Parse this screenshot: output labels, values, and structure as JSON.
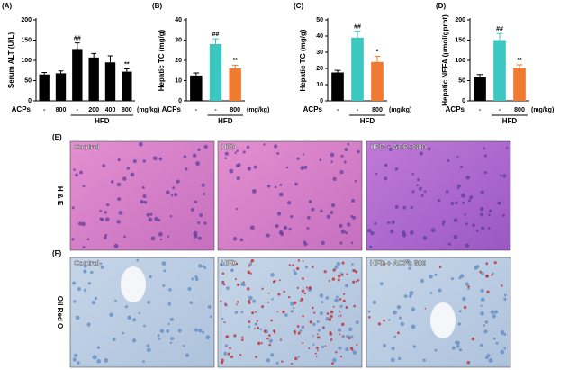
{
  "chart_data": [
    {
      "type": "bar",
      "title": "(A)",
      "y_label": "Serum ALT (U/L)",
      "row_label": "ACPs",
      "unit_label": "(mg/kg)",
      "categories": [
        "-",
        "800",
        "-",
        "200",
        "400",
        "800"
      ],
      "values": [
        65,
        68,
        128,
        107,
        95,
        72
      ],
      "errors": [
        5,
        6,
        15,
        10,
        16,
        7
      ],
      "colors": [
        "#000000",
        "#000000",
        "#000000",
        "#000000",
        "#000000",
        "#000000"
      ],
      "significance": [
        null,
        null,
        "##",
        null,
        null,
        "**"
      ],
      "group": {
        "label": "HFD",
        "first": 2,
        "last": 5
      },
      "ylim": [
        0,
        200
      ],
      "yticks": [
        0,
        50,
        100,
        150,
        200
      ]
    },
    {
      "type": "bar",
      "title": "(B)",
      "y_label": "Hepatic TC (mg/g)",
      "row_label": "ACPs",
      "unit_label": "(mg/kg)",
      "categories": [
        "-",
        "-",
        "800"
      ],
      "values": [
        12.5,
        28,
        16
      ],
      "errors": [
        1.3,
        2.6,
        1.6
      ],
      "colors": [
        "#000000",
        "#3cc8c0",
        "#f07a30"
      ],
      "significance": [
        null,
        "##",
        "**"
      ],
      "group": {
        "label": "HFD",
        "first": 1,
        "last": 2
      },
      "ylim": [
        0,
        40
      ],
      "yticks": [
        0,
        10,
        20,
        30,
        40
      ]
    },
    {
      "type": "bar",
      "title": "(C)",
      "y_label": "Hepatic TG (mg/g)",
      "row_label": "ACPs",
      "unit_label": "(mg/kg)",
      "categories": [
        "-",
        "-",
        "800"
      ],
      "values": [
        17.5,
        39,
        24
      ],
      "errors": [
        1.3,
        4,
        3.5
      ],
      "colors": [
        "#000000",
        "#3cc8c0",
        "#f07a30"
      ],
      "significance": [
        null,
        "##",
        "*"
      ],
      "group": {
        "label": "HFD",
        "first": 1,
        "last": 2
      },
      "ylim": [
        0,
        50
      ],
      "yticks": [
        0,
        10,
        20,
        30,
        40,
        50
      ]
    },
    {
      "type": "bar",
      "title": "(D)",
      "y_label": "Hepatic NEFA (μmol/gprot)",
      "row_label": "ACPs",
      "unit_label": "(mg/kg)",
      "categories": [
        "-",
        "-",
        "800"
      ],
      "values": [
        58,
        150,
        80
      ],
      "errors": [
        7,
        16,
        9
      ],
      "colors": [
        "#000000",
        "#3cc8c0",
        "#f07a30"
      ],
      "significance": [
        null,
        "##",
        "**"
      ],
      "group": {
        "label": "HFD",
        "first": 1,
        "last": 2
      },
      "ylim": [
        0,
        200
      ],
      "yticks": [
        0,
        50,
        100,
        150,
        200
      ]
    }
  ],
  "panels": [
    {
      "letter": "(E)",
      "stain": "H & E",
      "images": [
        "Control",
        "HFD",
        "HFD + ACPs 800"
      ]
    },
    {
      "letter": "(F)",
      "stain": "Oil Red O",
      "images": [
        "Control",
        "HFD",
        "HFD + ACPs 800"
      ]
    }
  ]
}
